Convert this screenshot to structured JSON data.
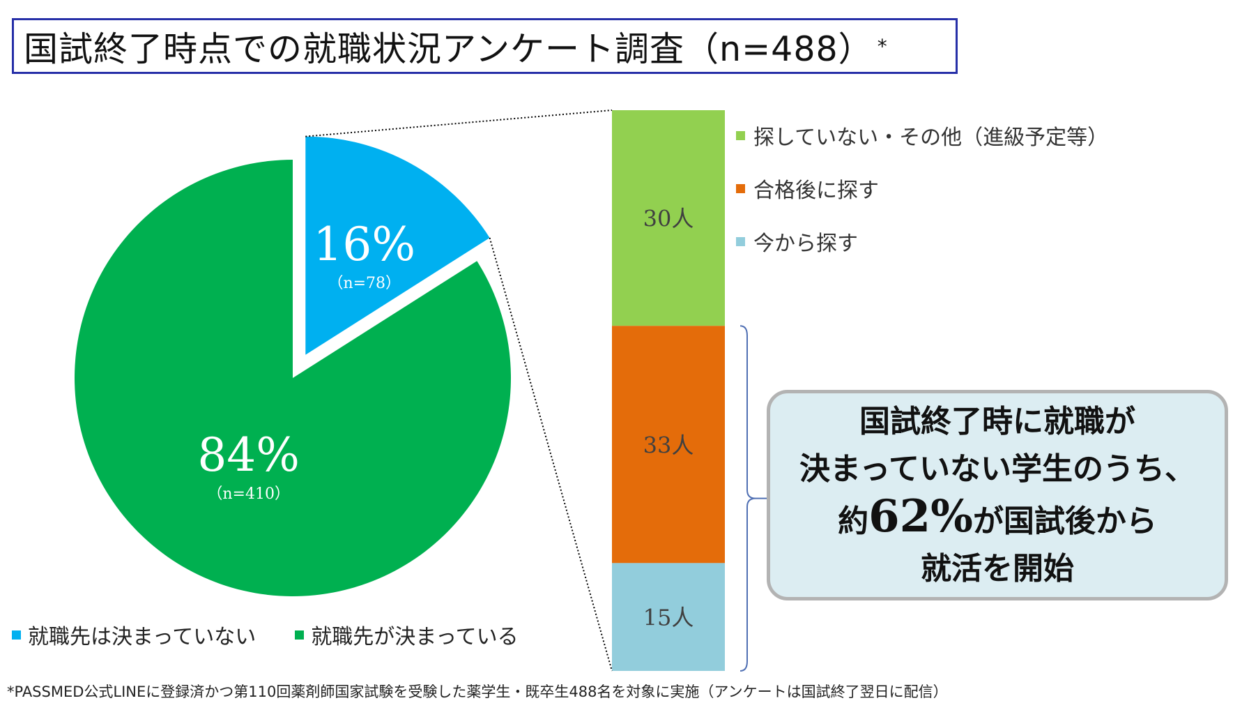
{
  "title": "国試終了時点での就職状況アンケート調査（n=488）",
  "title_mark": "*",
  "chart_data": [
    {
      "type": "pie",
      "slices": [
        {
          "name": "就職先は決まっていない",
          "value": 16,
          "label": "16%",
          "sublabel": "（n=78）",
          "color": "#00b0f0",
          "exploded": true
        },
        {
          "name": "就職先が決まっている",
          "value": 84,
          "label": "84%",
          "sublabel": "（n=410）",
          "color": "#00b050",
          "exploded": false
        }
      ],
      "legend": "bottom"
    },
    {
      "type": "bar",
      "stacked": true,
      "segments": [
        {
          "name": "探していない・その他（進級予定等）",
          "value": 30,
          "label": "30人",
          "color": "#92d050"
        },
        {
          "name": "合格後に探す",
          "value": 33,
          "label": "33人",
          "color": "#e46c0a"
        },
        {
          "name": "今から探す",
          "value": 15,
          "label": "15人",
          "color": "#92cddc"
        }
      ],
      "total": 78,
      "legend": "right"
    }
  ],
  "callout": {
    "line1": "国試終了時に就職が",
    "line2": "決まっていない学生のうち、",
    "line3_prefix": "約",
    "line3_big": "62%",
    "line3_suffix": "が国試後から",
    "line4": "就活を開始"
  },
  "footnote": "*PASSMED公式LINEに登録済かつ第110回薬剤師国家試験を受験した薬学生・既卒生488名を対象に実施（アンケートは国試終了翌日に配信）"
}
